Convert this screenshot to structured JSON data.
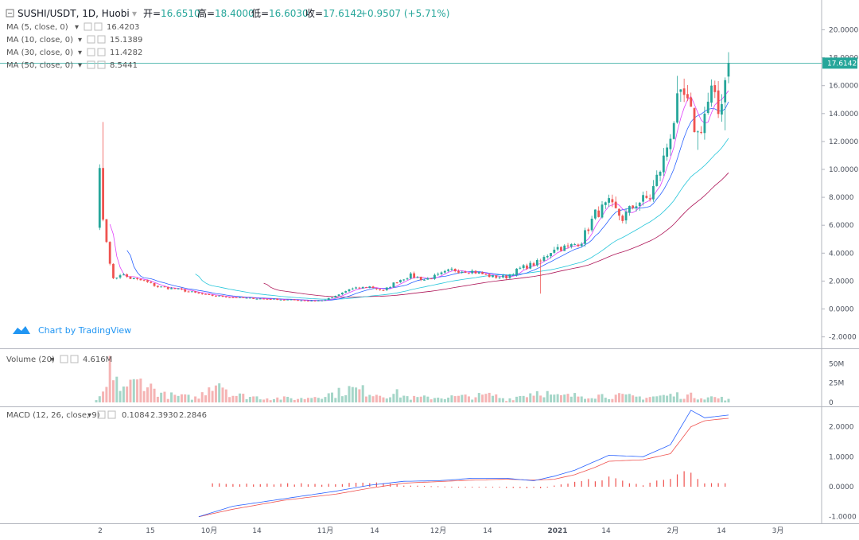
{
  "header": {
    "symbol": "SUSHI/USDT, 1D, Huobi",
    "open_label": "开=",
    "open": "16.6510",
    "high_label": "高=",
    "high": "18.4000",
    "low_label": "低=",
    "low": "16.6030",
    "close_label": "收=",
    "close": "17.6142",
    "change": "+0.9507 (+5.71%)"
  },
  "legends": {
    "ma5": {
      "label": "MA (5, close, 0)",
      "value": "16.4203",
      "color": "#e040fb"
    },
    "ma10": {
      "label": "MA (10, close, 0)",
      "value": "15.1389",
      "color": "#2962ff"
    },
    "ma30": {
      "label": "MA (30, close, 0)",
      "value": "11.4282",
      "color": "#26c6da"
    },
    "ma50": {
      "label": "MA (50, close, 0)",
      "value": "8.5441",
      "color": "#ad1457"
    },
    "volume": {
      "label": "Volume (20)",
      "value": "4.616M",
      "color": "#26a69a"
    },
    "macd": {
      "label": "MACD (12, 26, close, 9)",
      "hist": "0.1084",
      "macd": "2.3930",
      "signal": "2.2846",
      "hist_color": "#ef5350",
      "macd_color": "#2962ff",
      "signal_color": "#ef5350"
    }
  },
  "watermark": "Chart by TradingView",
  "price_tag": "17.6142",
  "colors": {
    "up": "#26a69a",
    "down": "#ef5350",
    "up_vol": "#a5d6c8",
    "down_vol": "#f5b4b4"
  },
  "chart_data": {
    "type": "candlestick",
    "x_ticks": [
      "2",
      "15",
      "10月",
      "14",
      "11月",
      "14",
      "12月",
      "14",
      "2021",
      "14",
      "2月",
      "14",
      "3月"
    ],
    "price_axis": {
      "ylim": [
        -2.6,
        21.2
      ],
      "ticks": [
        "20.0000",
        "18.0000",
        "16.0000",
        "14.0000",
        "12.0000",
        "10.0000",
        "8.0000",
        "6.0000",
        "4.0000",
        "2.0000",
        "0.0000",
        "-2.0000"
      ]
    },
    "volume_axis": {
      "ylim": [
        0,
        62
      ],
      "ticks": [
        "50M",
        "25M",
        "0"
      ]
    },
    "macd_axis": {
      "ylim": [
        -1.1,
        2.65
      ],
      "ticks": [
        "2.0000",
        "1.0000",
        "0.0000",
        "-1.0000"
      ]
    },
    "close_path": [
      [
        0,
        5.8
      ],
      [
        1,
        10.1
      ],
      [
        2,
        6.4
      ],
      [
        3,
        4.8
      ],
      [
        5,
        2.1
      ],
      [
        7,
        2.5
      ],
      [
        10,
        2.2
      ],
      [
        14,
        2.0
      ],
      [
        18,
        1.6
      ],
      [
        24,
        1.4
      ],
      [
        32,
        1.0
      ],
      [
        42,
        0.8
      ],
      [
        52,
        0.7
      ],
      [
        62,
        0.6
      ],
      [
        66,
        0.6
      ],
      [
        70,
        0.9
      ],
      [
        74,
        1.4
      ],
      [
        80,
        1.6
      ],
      [
        84,
        1.3
      ],
      [
        88,
        2.0
      ],
      [
        92,
        2.4
      ],
      [
        96,
        2.1
      ],
      [
        100,
        2.4
      ],
      [
        104,
        2.8
      ],
      [
        110,
        2.7
      ],
      [
        116,
        2.3
      ],
      [
        120,
        2.3
      ],
      [
        124,
        2.9
      ],
      [
        130,
        3.4
      ],
      [
        134,
        4.4
      ],
      [
        138,
        4.4
      ],
      [
        142,
        4.9
      ],
      [
        146,
        6.8
      ],
      [
        150,
        7.5
      ],
      [
        154,
        6.5
      ],
      [
        158,
        7.6
      ],
      [
        162,
        8.0
      ],
      [
        166,
        10.7
      ],
      [
        170,
        14.6
      ],
      [
        172,
        15.1
      ],
      [
        174,
        13.8
      ],
      [
        176,
        12.5
      ],
      [
        178,
        14.0
      ],
      [
        180,
        15.5
      ],
      [
        182,
        14.0
      ],
      [
        184,
        16.5
      ],
      [
        185,
        17.61
      ]
    ],
    "spikes": [
      {
        "i": 2,
        "high": 13.4
      },
      {
        "i": 130,
        "low": 1.1
      },
      {
        "i": 170,
        "high": 16.7
      },
      {
        "i": 176,
        "low": 11.4
      },
      {
        "i": 184,
        "low": 12.8
      },
      {
        "i": 185,
        "high": 18.4
      }
    ],
    "volume_path": [
      [
        0,
        3
      ],
      [
        1,
        8
      ],
      [
        2,
        14
      ],
      [
        3,
        20
      ],
      [
        4,
        60
      ],
      [
        5,
        26
      ],
      [
        8,
        22
      ],
      [
        12,
        26
      ],
      [
        14,
        32
      ],
      [
        16,
        20
      ],
      [
        20,
        10
      ],
      [
        30,
        6
      ],
      [
        34,
        28
      ],
      [
        36,
        30
      ],
      [
        40,
        10
      ],
      [
        50,
        6
      ],
      [
        60,
        5
      ],
      [
        66,
        10
      ],
      [
        70,
        12
      ],
      [
        74,
        18
      ],
      [
        78,
        16
      ],
      [
        84,
        10
      ],
      [
        88,
        12
      ],
      [
        92,
        6
      ],
      [
        110,
        8
      ],
      [
        116,
        10
      ],
      [
        120,
        4
      ],
      [
        130,
        16
      ],
      [
        134,
        8
      ],
      [
        146,
        10
      ],
      [
        160,
        7
      ],
      [
        170,
        10
      ],
      [
        180,
        7
      ],
      [
        185,
        4.6
      ]
    ],
    "macd_line": [
      [
        30,
        -1.0
      ],
      [
        40,
        -0.65
      ],
      [
        55,
        -0.4
      ],
      [
        70,
        -0.15
      ],
      [
        80,
        0.05
      ],
      [
        90,
        0.18
      ],
      [
        100,
        0.2
      ],
      [
        110,
        0.28
      ],
      [
        120,
        0.28
      ],
      [
        128,
        0.2
      ],
      [
        134,
        0.35
      ],
      [
        140,
        0.55
      ],
      [
        146,
        0.85
      ],
      [
        150,
        1.05
      ],
      [
        160,
        1.0
      ],
      [
        168,
        1.4
      ],
      [
        174,
        2.55
      ],
      [
        178,
        2.3
      ],
      [
        182,
        2.35
      ],
      [
        185,
        2.39
      ]
    ],
    "signal_line": [
      [
        30,
        -1.0
      ],
      [
        40,
        -0.75
      ],
      [
        55,
        -0.45
      ],
      [
        70,
        -0.25
      ],
      [
        80,
        -0.05
      ],
      [
        90,
        0.12
      ],
      [
        100,
        0.17
      ],
      [
        110,
        0.22
      ],
      [
        120,
        0.25
      ],
      [
        128,
        0.22
      ],
      [
        134,
        0.25
      ],
      [
        140,
        0.4
      ],
      [
        146,
        0.65
      ],
      [
        150,
        0.85
      ],
      [
        160,
        0.9
      ],
      [
        168,
        1.1
      ],
      [
        174,
        2.0
      ],
      [
        178,
        2.2
      ],
      [
        182,
        2.25
      ],
      [
        185,
        2.28
      ]
    ],
    "hist_path": [
      [
        34,
        0.1
      ],
      [
        60,
        0.1
      ],
      [
        70,
        0.08
      ],
      [
        76,
        0.15
      ],
      [
        82,
        0.12
      ],
      [
        90,
        0.05
      ],
      [
        110,
        -0.02
      ],
      [
        130,
        -0.05
      ],
      [
        134,
        0.05
      ],
      [
        146,
        0.25
      ],
      [
        150,
        0.3
      ],
      [
        160,
        0.05
      ],
      [
        168,
        0.35
      ],
      [
        171,
        0.65
      ],
      [
        174,
        0.4
      ],
      [
        178,
        0.1
      ],
      [
        185,
        0.11
      ]
    ]
  }
}
